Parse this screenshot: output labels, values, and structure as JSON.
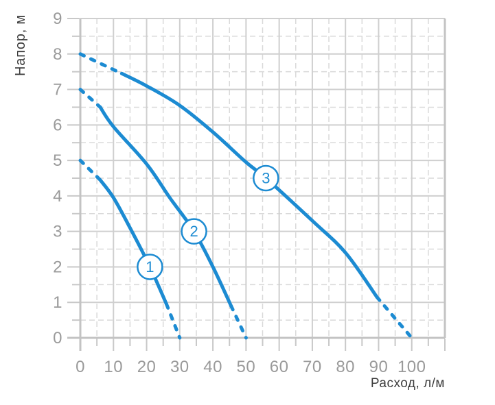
{
  "page": {
    "background": "#ffffff"
  },
  "chart_data": {
    "type": "line",
    "title": "",
    "xlabel": "Расход, л/м",
    "ylabel": "Напор, м",
    "xlim": [
      0,
      110
    ],
    "ylim": [
      0,
      9
    ],
    "grid": "major solid, minor dashed",
    "x_minor_step": 5,
    "y_minor_step": 0.5,
    "legend_position": "none",
    "x_ticks": [
      {
        "v": 0,
        "label": "0"
      },
      {
        "v": 10,
        "label": "10"
      },
      {
        "v": 20,
        "label": "20"
      },
      {
        "v": 30,
        "label": "30"
      },
      {
        "v": 40,
        "label": "40"
      },
      {
        "v": 50,
        "label": "50"
      },
      {
        "v": 60,
        "label": "60"
      },
      {
        "v": 70,
        "label": "70"
      },
      {
        "v": 80,
        "label": "80"
      },
      {
        "v": 90,
        "label": "90"
      },
      {
        "v": 100,
        "label": "100"
      }
    ],
    "y_ticks": [
      {
        "v": 0,
        "label": "0"
      },
      {
        "v": 1,
        "label": "1"
      },
      {
        "v": 2,
        "label": "2"
      },
      {
        "v": 3,
        "label": "3"
      },
      {
        "v": 4,
        "label": "4"
      },
      {
        "v": 5,
        "label": "5"
      },
      {
        "v": 6,
        "label": "6"
      },
      {
        "v": 7,
        "label": "7"
      },
      {
        "v": 8,
        "label": "8"
      },
      {
        "v": 9,
        "label": "9"
      }
    ],
    "series": [
      {
        "name": "1",
        "label": {
          "text": "1",
          "x": 21,
          "y": 2.0
        },
        "dashed_start": [
          [
            0,
            5.0
          ],
          [
            6,
            4.45
          ]
        ],
        "solid": [
          [
            6,
            4.45
          ],
          [
            10,
            3.95
          ],
          [
            15,
            3.1
          ],
          [
            21,
            2.0
          ],
          [
            26,
            0.95
          ]
        ],
        "dashed_end": [
          [
            26,
            0.95
          ],
          [
            30,
            0
          ]
        ]
      },
      {
        "name": "2",
        "label": {
          "text": "2",
          "x": 34.3,
          "y": 3.0
        },
        "dashed_start": [
          [
            0,
            7.0
          ],
          [
            6,
            6.5
          ]
        ],
        "solid": [
          [
            6,
            6.5
          ],
          [
            10,
            5.95
          ],
          [
            20,
            4.9
          ],
          [
            27,
            3.95
          ],
          [
            34.3,
            3.0
          ],
          [
            40,
            2.0
          ],
          [
            45.5,
            0.9
          ]
        ],
        "dashed_end": [
          [
            45.5,
            0.9
          ],
          [
            50,
            0
          ]
        ]
      },
      {
        "name": "3",
        "label": {
          "text": "3",
          "x": 56,
          "y": 4.5
        },
        "dashed_start": [
          [
            0,
            8.0
          ],
          [
            12.5,
            7.45
          ]
        ],
        "solid": [
          [
            12.5,
            7.45
          ],
          [
            20,
            7.1
          ],
          [
            30,
            6.55
          ],
          [
            40,
            5.8
          ],
          [
            50,
            4.95
          ],
          [
            56,
            4.5
          ],
          [
            70,
            3.3
          ],
          [
            80,
            2.4
          ],
          [
            89.5,
            1.15
          ]
        ],
        "dashed_end": [
          [
            89.5,
            1.15
          ],
          [
            100,
            0
          ]
        ]
      }
    ],
    "colors": {
      "curve": "#1c8bd2",
      "grid_major": "#cfcfcf",
      "grid_minor": "#d9d9d9",
      "axis": "#c3c3c3",
      "tick": "#c8c8c8",
      "tick_text": "#9a9a9a",
      "title_text": "#3c3c3c",
      "label_circle_fill": "#ffffff"
    }
  }
}
